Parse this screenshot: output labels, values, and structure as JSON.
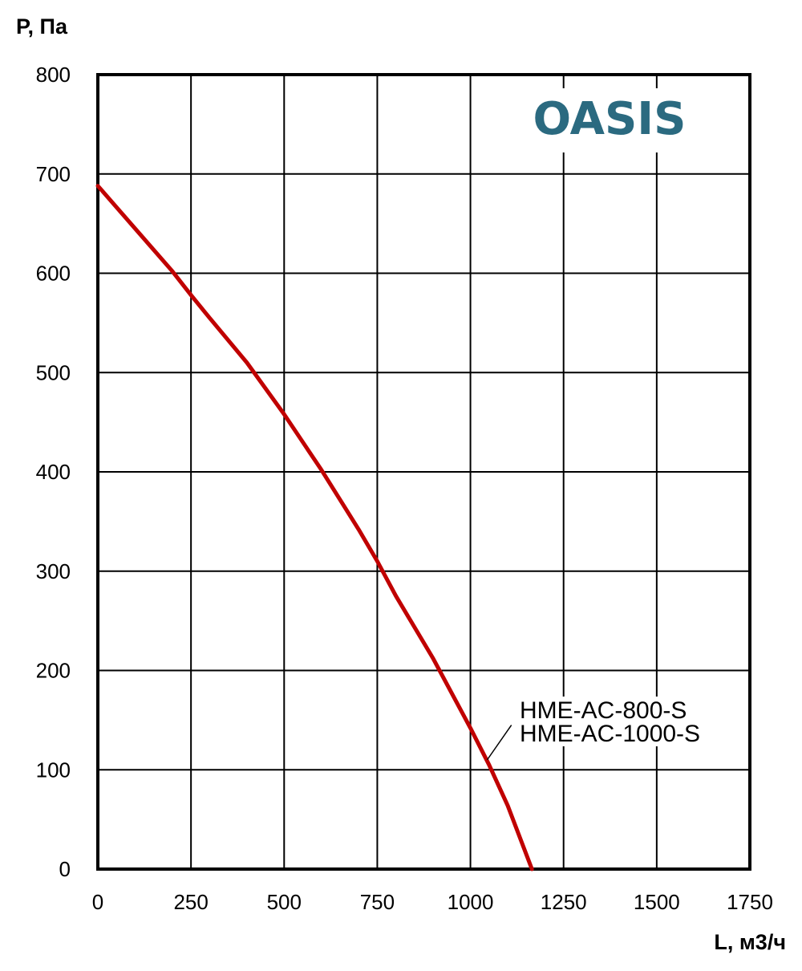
{
  "brand": {
    "logo_text": "OASIS",
    "logo_color": "#2b6a80"
  },
  "chart_data": {
    "type": "line",
    "xlabel": "L, м3/ч",
    "ylabel": "P, Па",
    "xlim": [
      0,
      1750
    ],
    "ylim": [
      0,
      800
    ],
    "xticks": [
      0,
      250,
      500,
      750,
      1000,
      1250,
      1500,
      1750
    ],
    "yticks": [
      0,
      100,
      200,
      300,
      400,
      500,
      600,
      700,
      800
    ],
    "grid": true,
    "series": [
      {
        "labels": [
          "HME-AC-800-S",
          "HME-AC-1000-S"
        ],
        "color": "#c00000",
        "x": [
          0,
          100,
          200,
          250,
          300,
          400,
          500,
          600,
          700,
          750,
          800,
          900,
          1000,
          1050,
          1100,
          1165
        ],
        "y": [
          688,
          645,
          602,
          578,
          555,
          510,
          458,
          402,
          342,
          310,
          275,
          212,
          142,
          105,
          64,
          0
        ]
      }
    ]
  }
}
